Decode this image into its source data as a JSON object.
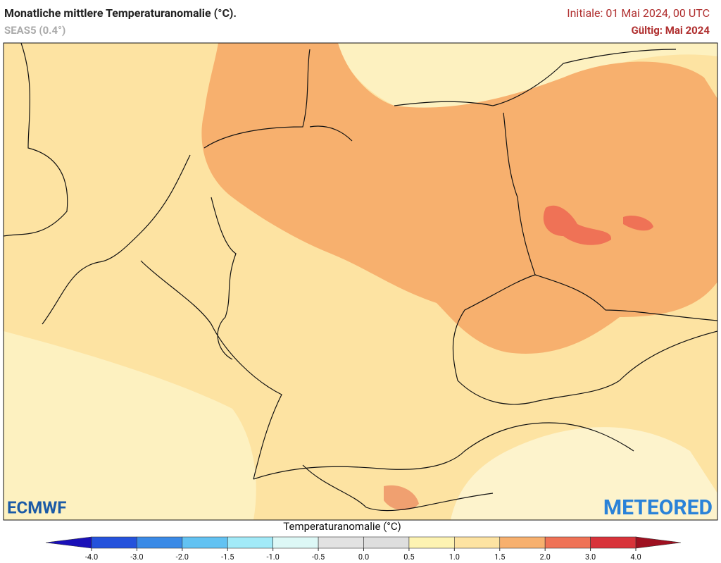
{
  "header": {
    "title": "Monatliche mittlere Temperaturanomalie (°C).",
    "model": "SEAS5 (0.4°)",
    "init": "Initiale: 01 Mai 2024, 00 UTC",
    "valid": "Gültig: Mai 2024"
  },
  "logos": {
    "left": "ECMWF",
    "right": "METEORED"
  },
  "colorbar": {
    "title": "Temperaturanomalie (°C)",
    "ticks": [
      {
        "value": -4,
        "label": "-4.0"
      },
      {
        "value": -3,
        "label": "-3.0"
      },
      {
        "value": -2,
        "label": "-2.0"
      },
      {
        "value": -1.5,
        "label": "-1.5"
      },
      {
        "value": -1,
        "label": "-1.0"
      },
      {
        "value": -0.5,
        "label": "-0.5"
      },
      {
        "value": 0,
        "label": "0.0"
      },
      {
        "value": 0.5,
        "label": "0.5"
      },
      {
        "value": 1,
        "label": "1.0"
      },
      {
        "value": 1.5,
        "label": "1.5"
      },
      {
        "value": 2,
        "label": "2.0"
      },
      {
        "value": 3,
        "label": "3.0"
      },
      {
        "value": 4,
        "label": "4.0"
      }
    ],
    "under_color": "#1a10b8",
    "colors": [
      "#2552dc",
      "#3a8ae6",
      "#62c2f2",
      "#a2eaf8",
      "#ddf8f6",
      "#e2e2e2",
      "#dedede",
      "#fdf3b2",
      "#fde3a2",
      "#f7b06e",
      "#ef7256",
      "#d8333a"
    ],
    "over_color": "#9e1020"
  }
}
